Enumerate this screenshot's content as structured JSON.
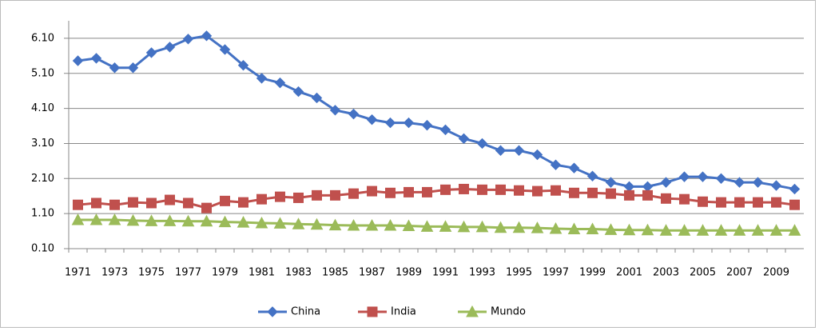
{
  "chart_data": {
    "type": "line",
    "categories": [
      "1971",
      null,
      "1973",
      null,
      "1975",
      null,
      "1977",
      null,
      "1979",
      null,
      "1981",
      null,
      "1983",
      null,
      "1985",
      null,
      "1987",
      null,
      "1989",
      null,
      "1991",
      null,
      "1993",
      null,
      "1995",
      null,
      "1997",
      null,
      "1999",
      null,
      "2001",
      null,
      "2003",
      null,
      "2005",
      null,
      "2007",
      null,
      "2009",
      null
    ],
    "series": [
      {
        "name": "China",
        "color": "#4472c4",
        "marker": "diamond",
        "values": [
          5.46,
          5.53,
          5.26,
          5.26,
          5.69,
          5.85,
          6.08,
          6.17,
          5.78,
          5.33,
          4.96,
          4.83,
          4.58,
          4.4,
          4.05,
          3.94,
          3.78,
          3.69,
          3.69,
          3.62,
          3.49,
          3.24,
          3.1,
          2.9,
          2.9,
          2.78,
          2.49,
          2.4,
          2.17,
          1.99,
          1.87,
          1.87,
          1.99,
          2.15,
          2.15,
          2.1,
          1.99,
          1.99,
          1.9,
          1.8
        ]
      },
      {
        "name": "India",
        "color": "#c0504d",
        "marker": "square",
        "values": [
          1.35,
          1.4,
          1.35,
          1.42,
          1.4,
          1.49,
          1.4,
          1.26,
          1.46,
          1.42,
          1.51,
          1.58,
          1.55,
          1.62,
          1.62,
          1.67,
          1.74,
          1.69,
          1.71,
          1.71,
          1.78,
          1.8,
          1.78,
          1.78,
          1.76,
          1.74,
          1.76,
          1.69,
          1.69,
          1.67,
          1.62,
          1.62,
          1.53,
          1.51,
          1.44,
          1.42,
          1.42,
          1.42,
          1.42,
          1.35
        ]
      },
      {
        "name": "Mundo",
        "color": "#9bbb59",
        "marker": "triangle",
        "values": [
          0.92,
          0.92,
          0.92,
          0.9,
          0.89,
          0.89,
          0.88,
          0.88,
          0.86,
          0.85,
          0.83,
          0.82,
          0.8,
          0.79,
          0.77,
          0.76,
          0.76,
          0.76,
          0.75,
          0.73,
          0.73,
          0.72,
          0.72,
          0.7,
          0.7,
          0.69,
          0.67,
          0.66,
          0.66,
          0.64,
          0.63,
          0.63,
          0.62,
          0.62,
          0.62,
          0.62,
          0.62,
          0.62,
          0.62,
          0.62
        ]
      }
    ],
    "ylim": [
      0.1,
      6.6
    ],
    "yticks": [
      {
        "value": 0.1,
        "label": "0.10"
      },
      {
        "value": 1.1,
        "label": "1.10"
      },
      {
        "value": 2.1,
        "label": "2.10"
      },
      {
        "value": 3.1,
        "label": "3.10"
      },
      {
        "value": 4.1,
        "label": "4.10"
      },
      {
        "value": 5.1,
        "label": "5.10"
      },
      {
        "value": 6.1,
        "label": "6.10"
      }
    ],
    "grid": true,
    "legend": "bottom"
  }
}
